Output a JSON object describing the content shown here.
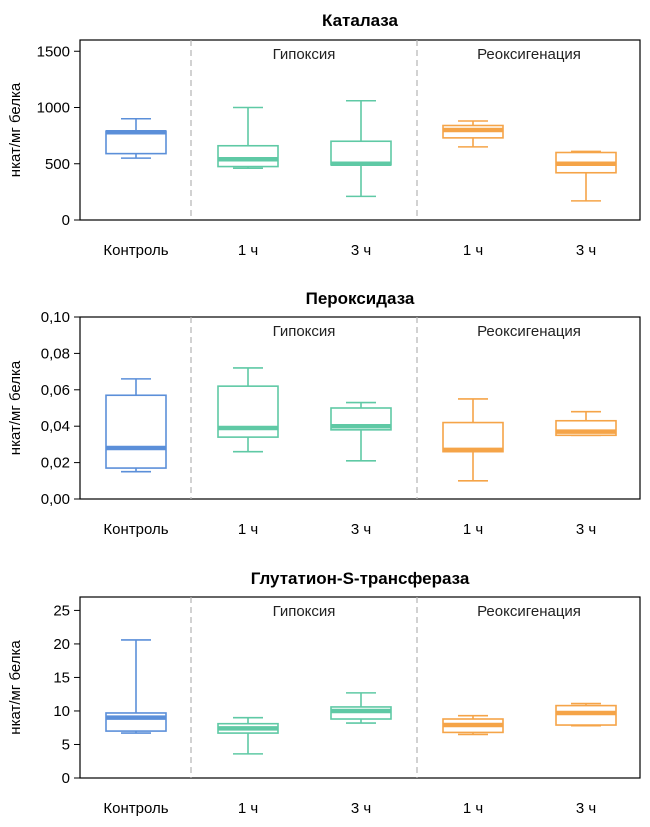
{
  "chart_data": [
    {
      "type": "box",
      "title": "Каталаза",
      "ylabel": "нкат/мг белка",
      "ylim": [
        0,
        1600
      ],
      "yticks": [
        "0",
        "500",
        "1000",
        "1500"
      ],
      "ytick_values": [
        0,
        500,
        1000,
        1500
      ],
      "categories": [
        "Контроль",
        "1 ч",
        "3 ч",
        "1 ч",
        "3 ч"
      ],
      "group_labels": [
        "Гипоксия",
        "Реоксигенация"
      ],
      "boxes": [
        {
          "min": 550,
          "q1": 590,
          "median": 780,
          "q3": 790,
          "max": 900,
          "color": "#5b8fd9"
        },
        {
          "min": 460,
          "q1": 475,
          "median": 540,
          "q3": 660,
          "max": 1000,
          "color": "#5fc9a5"
        },
        {
          "min": 210,
          "q1": 490,
          "median": 500,
          "q3": 700,
          "max": 1060,
          "color": "#5fc9a5"
        },
        {
          "min": 650,
          "q1": 730,
          "median": 800,
          "q3": 840,
          "max": 880,
          "color": "#f5a448"
        },
        {
          "min": 170,
          "q1": 420,
          "median": 500,
          "q3": 600,
          "max": 610,
          "color": "#f5a448"
        }
      ]
    },
    {
      "type": "box",
      "title": "Пероксидаза",
      "ylabel": "нкат/мг белка",
      "ylim": [
        0,
        0.1
      ],
      "yticks": [
        "0,00",
        "0,02",
        "0,04",
        "0,06",
        "0,08",
        "0,10"
      ],
      "ytick_values": [
        0,
        0.02,
        0.04,
        0.06,
        0.08,
        0.1
      ],
      "categories": [
        "Контроль",
        "1 ч",
        "3 ч",
        "1 ч",
        "3 ч"
      ],
      "group_labels": [
        "Гипоксия",
        "Реоксигенация"
      ],
      "boxes": [
        {
          "min": 0.015,
          "q1": 0.017,
          "median": 0.028,
          "q3": 0.057,
          "max": 0.066,
          "color": "#5b8fd9"
        },
        {
          "min": 0.026,
          "q1": 0.034,
          "median": 0.039,
          "q3": 0.062,
          "max": 0.072,
          "color": "#5fc9a5"
        },
        {
          "min": 0.021,
          "q1": 0.038,
          "median": 0.04,
          "q3": 0.05,
          "max": 0.053,
          "color": "#5fc9a5"
        },
        {
          "min": 0.01,
          "q1": 0.026,
          "median": 0.027,
          "q3": 0.042,
          "max": 0.055,
          "color": "#f5a448"
        },
        {
          "min": 0.035,
          "q1": 0.035,
          "median": 0.037,
          "q3": 0.043,
          "max": 0.048,
          "color": "#f5a448"
        }
      ]
    },
    {
      "type": "box",
      "title": "Глутатион-S-трансфераза",
      "ylabel": "нкат/мг белка",
      "ylim": [
        0,
        27
      ],
      "yticks": [
        "0",
        "5",
        "10",
        "15",
        "20",
        "25"
      ],
      "ytick_values": [
        0,
        5,
        10,
        15,
        20,
        25
      ],
      "categories": [
        "Контроль",
        "1 ч",
        "3 ч",
        "1 ч",
        "3 ч"
      ],
      "group_labels": [
        "Гипоксия",
        "Реоксигенация"
      ],
      "boxes": [
        {
          "min": 6.7,
          "q1": 7.0,
          "median": 9.0,
          "q3": 9.7,
          "max": 20.6,
          "color": "#5b8fd9"
        },
        {
          "min": 3.6,
          "q1": 6.7,
          "median": 7.4,
          "q3": 8.1,
          "max": 9.0,
          "color": "#5fc9a5"
        },
        {
          "min": 8.2,
          "q1": 8.8,
          "median": 10.0,
          "q3": 10.6,
          "max": 12.7,
          "color": "#5fc9a5"
        },
        {
          "min": 6.5,
          "q1": 6.8,
          "median": 7.9,
          "q3": 8.8,
          "max": 9.3,
          "color": "#f5a448"
        },
        {
          "min": 7.8,
          "q1": 7.9,
          "median": 9.7,
          "q3": 10.8,
          "max": 11.1,
          "color": "#f5a448"
        }
      ]
    }
  ]
}
